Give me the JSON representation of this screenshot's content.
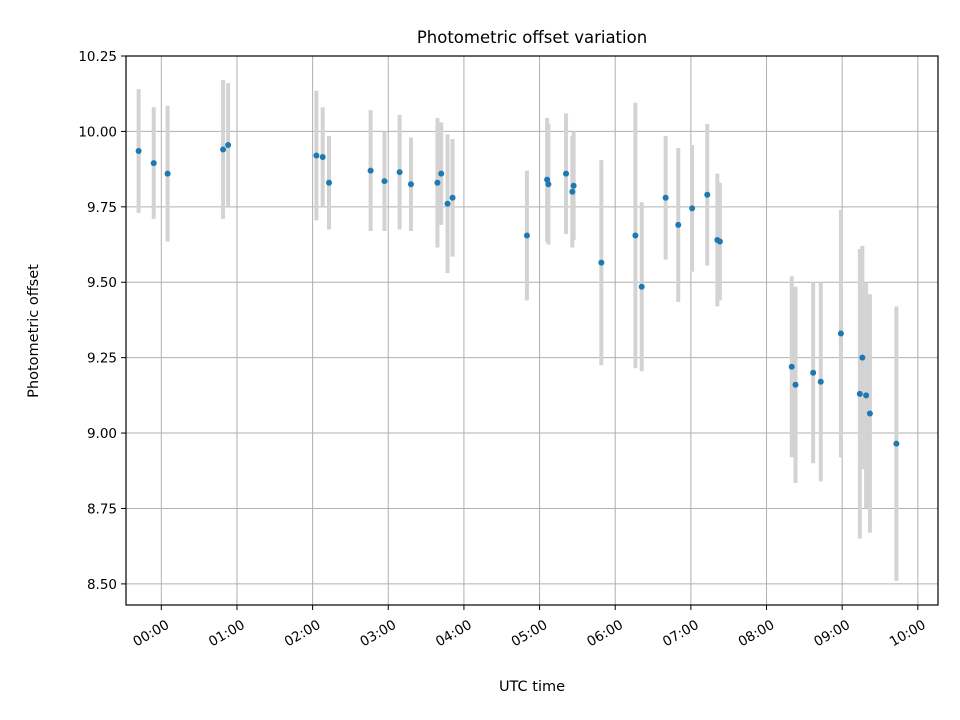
{
  "chart_data": {
    "type": "scatter",
    "title": "Photometric offset variation",
    "xlabel": "UTC time",
    "ylabel": "Photometric offset",
    "x_tick_labels": [
      "00:00",
      "01:00",
      "02:00",
      "03:00",
      "04:00",
      "05:00",
      "06:00",
      "07:00",
      "08:00",
      "09:00",
      "10:00"
    ],
    "y_tick_labels": [
      "8.50",
      "8.75",
      "9.00",
      "9.25",
      "9.50",
      "9.75",
      "10.00",
      "10.25"
    ],
    "xlim": [
      "-00:28",
      "10:16"
    ],
    "ylim": [
      8.43,
      10.25
    ],
    "grid": true,
    "legend": "none",
    "colors": {
      "point": "#1f77b4",
      "error_bar": "#d3d3d3",
      "grid": "#b0b0b0"
    },
    "points": [
      {
        "x": "-00:18",
        "y": 9.935,
        "err": 0.205
      },
      {
        "x": "-00:06",
        "y": 9.895,
        "err": 0.185
      },
      {
        "x": "00:05",
        "y": 9.86,
        "err": 0.225
      },
      {
        "x": "00:49",
        "y": 9.94,
        "err": 0.23
      },
      {
        "x": "00:53",
        "y": 9.955,
        "err": 0.205
      },
      {
        "x": "02:03",
        "y": 9.92,
        "err": 0.215
      },
      {
        "x": "02:08",
        "y": 9.915,
        "err": 0.165
      },
      {
        "x": "02:13",
        "y": 9.83,
        "err": 0.155
      },
      {
        "x": "02:46",
        "y": 9.87,
        "err": 0.2
      },
      {
        "x": "02:57",
        "y": 9.835,
        "err": 0.165
      },
      {
        "x": "03:09",
        "y": 9.865,
        "err": 0.19
      },
      {
        "x": "03:18",
        "y": 9.825,
        "err": 0.155
      },
      {
        "x": "03:39",
        "y": 9.83,
        "err": 0.215
      },
      {
        "x": "03:42",
        "y": 9.86,
        "err": 0.17
      },
      {
        "x": "03:47",
        "y": 9.76,
        "err": 0.23
      },
      {
        "x": "03:51",
        "y": 9.78,
        "err": 0.195
      },
      {
        "x": "04:50",
        "y": 9.655,
        "err": 0.215
      },
      {
        "x": "05:06",
        "y": 9.84,
        "err": 0.205
      },
      {
        "x": "05:07",
        "y": 9.825,
        "err": 0.2
      },
      {
        "x": "05:21",
        "y": 9.86,
        "err": 0.2
      },
      {
        "x": "05:26",
        "y": 9.8,
        "err": 0.185
      },
      {
        "x": "05:27",
        "y": 9.82,
        "err": 0.18
      },
      {
        "x": "05:49",
        "y": 9.565,
        "err": 0.34
      },
      {
        "x": "06:16",
        "y": 9.655,
        "err": 0.44
      },
      {
        "x": "06:21",
        "y": 9.485,
        "err": 0.28
      },
      {
        "x": "06:40",
        "y": 9.78,
        "err": 0.205
      },
      {
        "x": "06:50",
        "y": 9.69,
        "err": 0.255
      },
      {
        "x": "07:01",
        "y": 9.745,
        "err": 0.21
      },
      {
        "x": "07:13",
        "y": 9.79,
        "err": 0.235
      },
      {
        "x": "07:21",
        "y": 9.64,
        "err": 0.22
      },
      {
        "x": "07:23",
        "y": 9.635,
        "err": 0.195
      },
      {
        "x": "08:20",
        "y": 9.22,
        "err": 0.3
      },
      {
        "x": "08:23",
        "y": 9.16,
        "err": 0.325
      },
      {
        "x": "08:37",
        "y": 9.2,
        "err": 0.3
      },
      {
        "x": "08:43",
        "y": 9.17,
        "err": 0.33
      },
      {
        "x": "08:59",
        "y": 9.33,
        "err": 0.41
      },
      {
        "x": "09:14",
        "y": 9.13,
        "err": 0.48
      },
      {
        "x": "09:16",
        "y": 9.25,
        "err": 0.37
      },
      {
        "x": "09:19",
        "y": 9.125,
        "err": 0.375
      },
      {
        "x": "09:22",
        "y": 9.065,
        "err": 0.395
      },
      {
        "x": "09:43",
        "y": 8.965,
        "err": 0.455
      }
    ]
  }
}
